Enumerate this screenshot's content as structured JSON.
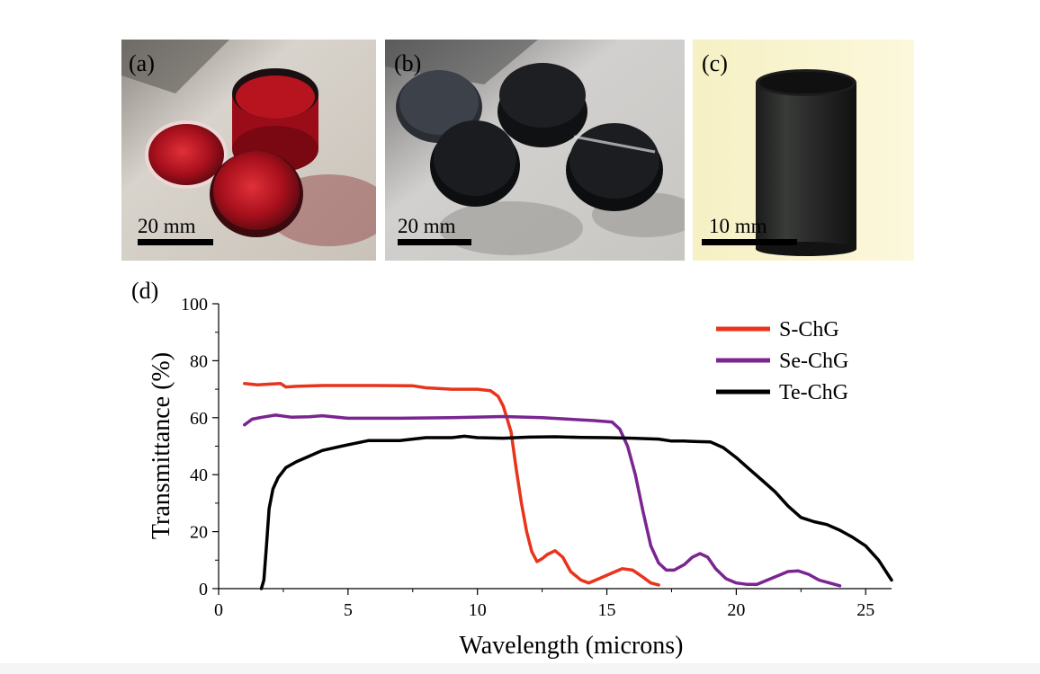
{
  "figure": {
    "panels": [
      {
        "label": "(a)",
        "scale": "20 mm"
      },
      {
        "label": "(b)",
        "scale": "20 mm"
      },
      {
        "label": "(c)",
        "scale": "10 mm"
      }
    ],
    "chart_label": "(d)"
  },
  "chart_data": {
    "type": "line",
    "xlabel": "Wavelength (microns)",
    "ylabel": "Transmittance (%)",
    "xlim": [
      0,
      26
    ],
    "ylim": [
      0,
      100
    ],
    "xticks": [
      0,
      5,
      10,
      15,
      20,
      25
    ],
    "yticks": [
      0,
      20,
      40,
      60,
      80,
      100
    ],
    "grid": false,
    "legend_position": "top-right",
    "series": [
      {
        "name": "S-ChG",
        "color": "#e8341c",
        "x": [
          1.0,
          1.5,
          2.0,
          2.4,
          2.6,
          3.0,
          4.0,
          6.0,
          7.5,
          8.0,
          9.0,
          10.0,
          10.5,
          10.8,
          11.0,
          11.3,
          11.5,
          11.7,
          11.9,
          12.1,
          12.3,
          12.5,
          12.7,
          13.0,
          13.3,
          13.6,
          14.0,
          14.3,
          14.7,
          15.2,
          15.6,
          16.0,
          16.4,
          16.7,
          17.0
        ],
        "y": [
          72,
          71.5,
          71.8,
          72,
          70.8,
          71,
          71.3,
          71.3,
          71.2,
          70.5,
          70,
          70,
          69.5,
          67.5,
          64,
          55,
          42,
          30,
          20,
          13,
          9.5,
          10.5,
          12,
          13.3,
          11,
          6,
          3,
          2,
          3.5,
          5.5,
          7,
          6.5,
          4,
          2,
          1.3
        ]
      },
      {
        "name": "Se-ChG",
        "color": "#7a2590",
        "x": [
          1.0,
          1.3,
          1.7,
          2.2,
          2.8,
          3.5,
          4.0,
          5.0,
          7.0,
          9.0,
          11.0,
          12.5,
          13.5,
          14.5,
          15.2,
          15.5,
          15.8,
          16.1,
          16.4,
          16.7,
          17.0,
          17.3,
          17.6,
          18.0,
          18.3,
          18.6,
          18.9,
          19.2,
          19.6,
          20.0,
          20.4,
          20.8,
          21.2,
          21.6,
          22.0,
          22.4,
          22.8,
          23.2,
          23.6,
          24.0
        ],
        "y": [
          57.5,
          59.5,
          60.2,
          60.9,
          60.2,
          60.3,
          60.7,
          59.8,
          59.8,
          60,
          60.4,
          60,
          59.5,
          59,
          58.5,
          56,
          50,
          40,
          27,
          15,
          9,
          6.5,
          6.5,
          8.5,
          11,
          12.3,
          11,
          7,
          3.5,
          2,
          1.5,
          1.5,
          3,
          4.5,
          6,
          6.2,
          5,
          3,
          2,
          1
        ]
      },
      {
        "name": "Te-ChG",
        "color": "#000000",
        "x": [
          1.65,
          1.75,
          1.85,
          1.95,
          2.1,
          2.3,
          2.6,
          3.0,
          3.5,
          4.0,
          5.0,
          5.8,
          6.5,
          7.0,
          8.0,
          9.0,
          9.5,
          10.0,
          11.0,
          12.0,
          13.0,
          14.0,
          15.0,
          16.0,
          17.0,
          17.5,
          18.0,
          18.5,
          19.0,
          19.5,
          20.0,
          20.5,
          21.0,
          21.5,
          22.0,
          22.5,
          23.0,
          23.5,
          24.0,
          24.5,
          25.0,
          25.5,
          26.0
        ],
        "y": [
          0,
          3,
          15,
          28,
          35,
          39,
          42.5,
          44.5,
          46.5,
          48.5,
          50.5,
          52,
          52,
          52,
          53,
          53,
          53.5,
          53,
          52.8,
          53.2,
          53.3,
          53.1,
          53,
          52.8,
          52.5,
          51.8,
          51.8,
          51.6,
          51.5,
          49.5,
          46,
          42,
          38,
          34,
          29,
          25,
          23.5,
          22.5,
          20.5,
          18,
          15,
          10,
          3
        ]
      }
    ]
  }
}
